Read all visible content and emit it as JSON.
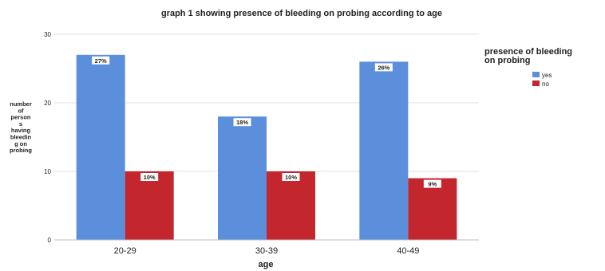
{
  "chart_data": {
    "type": "bar",
    "title": "graph 1 showing presence of bleeding on probing according to age",
    "xlabel": "age",
    "ylabel_lines": [
      "number",
      "of",
      "person",
      "s",
      "having",
      "bleedin",
      "g on",
      "probing"
    ],
    "categories": [
      "20-29",
      "30-39",
      "40-49"
    ],
    "ylim": [
      0,
      30
    ],
    "yticks": [
      0,
      10,
      20,
      30
    ],
    "grid": true,
    "legend": {
      "title_lines": [
        "presence of bleeding",
        "on probing"
      ],
      "placement": "right"
    },
    "series": [
      {
        "name": "yes",
        "color": "#5b8fdc",
        "values": [
          27,
          18,
          26
        ],
        "labels": [
          "27%",
          "18%",
          "26%"
        ]
      },
      {
        "name": "no",
        "color": "#c4262e",
        "values": [
          10,
          10,
          9
        ],
        "labels": [
          "10%",
          "10%",
          "9%"
        ]
      }
    ]
  }
}
